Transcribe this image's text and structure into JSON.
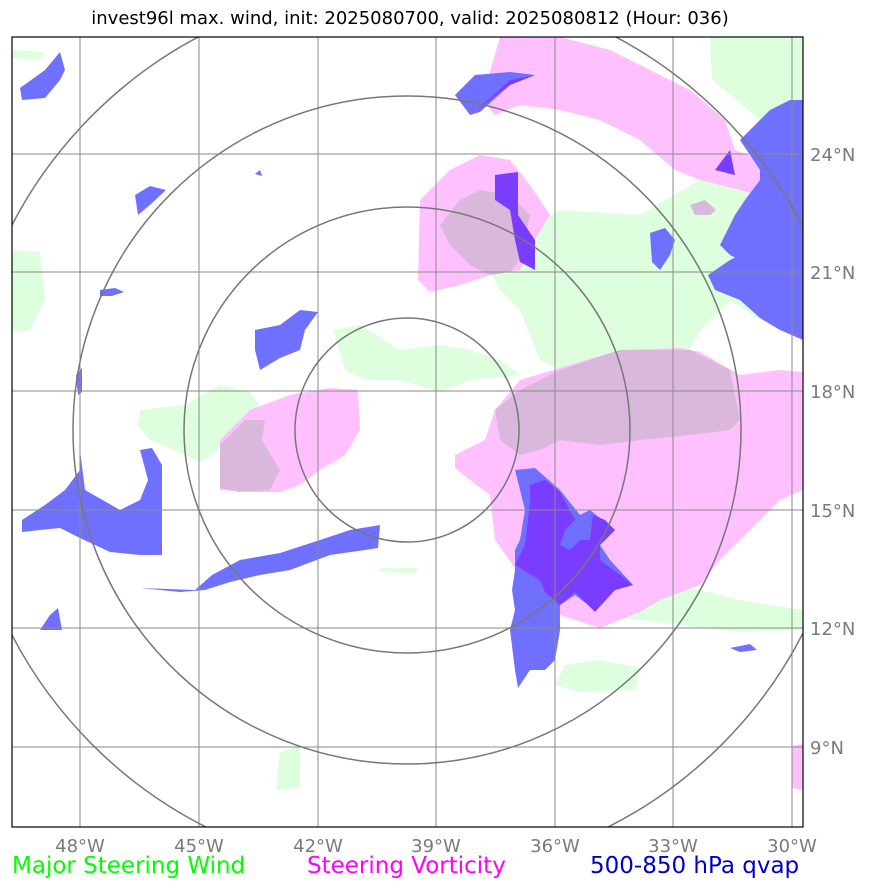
{
  "title": "invest96l max. wind, init: 2025080700, valid: 2025080812 (Hour: 036)",
  "map": {
    "lon_range": [
      -49.7,
      -29.7
    ],
    "lat_range": [
      7.3,
      27.3
    ],
    "lon_ticks": [
      "48°W",
      "45°W",
      "42°W",
      "39°W",
      "36°W",
      "33°W",
      "30°W"
    ],
    "lat_ticks": [
      "24°N",
      "21°N",
      "18°N",
      "15°N",
      "12°N",
      "9°N"
    ],
    "storm_center": {
      "lon": -39.7,
      "lat": 17.0
    },
    "range_ring_count": 4
  },
  "legend": {
    "wind_label": "Major Steering Wind",
    "vorticity_label": "Steering Vorticity",
    "qvap_label": "500-850 hPa qvap"
  },
  "colors": {
    "wind": "#00ff00",
    "vorticity": "#ff00ff",
    "qvap": "#0000cc",
    "wind_fill": "#ddffdd",
    "vorticity_fill": "#ffc0ff",
    "qvap_fill": "#7070ff",
    "overlap_fill": "#d9b8dc",
    "deep_fill": "#7a3cff"
  }
}
